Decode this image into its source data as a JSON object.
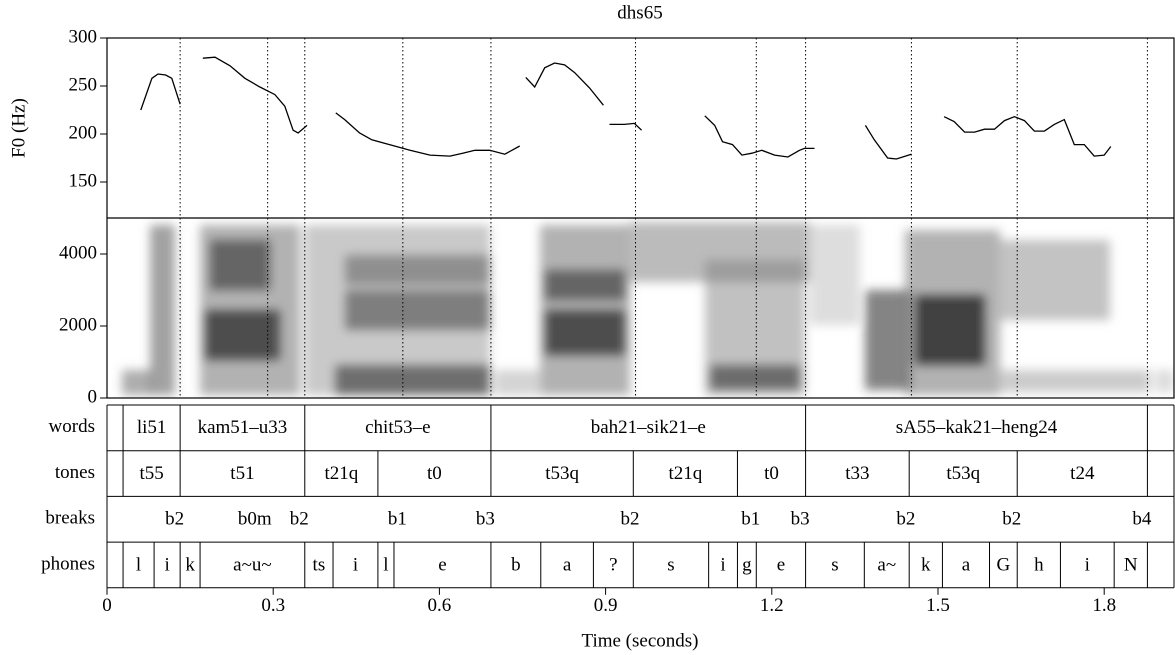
{
  "chart_data": [
    {
      "type": "line",
      "title": "dhs65",
      "ylabel": "F0 (Hz)",
      "color": "#000000",
      "ylim": [
        112.5,
        300
      ],
      "yticks": [
        150,
        200,
        250,
        300
      ],
      "x": [
        0.061,
        0.081,
        0.092,
        0.106,
        0.117,
        0.132,
        0.15,
        0.173,
        0.195,
        0.222,
        0.249,
        0.276,
        0.303,
        0.321,
        0.336,
        0.345,
        0.361,
        0.39,
        0.413,
        0.429,
        0.456,
        0.478,
        0.51,
        0.547,
        0.583,
        0.619,
        0.642,
        0.664,
        0.691,
        0.718,
        0.745,
        0.75,
        0.756,
        0.772,
        0.79,
        0.808,
        0.826,
        0.844,
        0.871,
        0.896,
        0.9,
        0.907,
        0.934,
        0.952,
        0.965,
        1.0,
        1.079,
        1.097,
        1.111,
        1.129,
        1.146,
        1.164,
        1.182,
        1.205,
        1.229,
        1.25,
        1.259,
        1.277,
        1.3,
        1.369,
        1.385,
        1.409,
        1.425,
        1.452,
        1.48,
        1.511,
        1.529,
        1.548,
        1.566,
        1.584,
        1.602,
        1.62,
        1.638,
        1.656,
        1.674,
        1.692,
        1.71,
        1.728,
        1.746,
        1.764,
        1.782,
        1.8,
        1.812
      ],
      "values": [
        225,
        258,
        262.5,
        261.5,
        258,
        231,
        null,
        279,
        280,
        271,
        258,
        249,
        241,
        229,
        204,
        201,
        209,
        null,
        222,
        215,
        201,
        194,
        189,
        183,
        178,
        177,
        180,
        183,
        183,
        179,
        187.5,
        null,
        259,
        249,
        269,
        274,
        272,
        264,
        248,
        230,
        null,
        210,
        210,
        211,
        204,
        null,
        219,
        209,
        192,
        189,
        178,
        180,
        183,
        178,
        176,
        183,
        185,
        185,
        null,
        209,
        194,
        175,
        174,
        179,
        null,
        218,
        213,
        202,
        202,
        205,
        205,
        214,
        218,
        214,
        203,
        203,
        210,
        215,
        189,
        189,
        177,
        178,
        187
      ]
    },
    {
      "type": "spectrogram",
      "ylim": [
        0,
        5000
      ],
      "yticks": [
        0,
        2000,
        4000
      ]
    },
    {
      "type": "textgrid",
      "xlabel": "Time (seconds)",
      "xlim": [
        0,
        1.926
      ],
      "xticks": [
        0,
        0.3,
        0.6,
        0.9,
        1.2,
        1.5,
        1.8
      ],
      "tiers": [
        {
          "name": "words",
          "kind": "interval",
          "boundaries": [
            0.029,
            0.132,
            0.357,
            0.693,
            1.261,
            1.878
          ],
          "labels": [
            "li51",
            "kam51–u33",
            "chit53–e",
            "bah21–sik21–e",
            "sA55–kak21–heng24"
          ]
        },
        {
          "name": "tones",
          "kind": "interval",
          "boundaries": [
            0.029,
            0.132,
            0.357,
            0.489,
            0.693,
            0.95,
            1.138,
            1.261,
            1.448,
            1.643,
            1.878
          ],
          "labels": [
            "t55",
            "t51",
            "t21q",
            "t0",
            "t53q",
            "t21q",
            "t0",
            "t33",
            "t53q",
            "t24"
          ]
        },
        {
          "name": "breaks",
          "kind": "point",
          "points": [
            0.132,
            0.29,
            0.357,
            0.534,
            0.693,
            0.954,
            1.172,
            1.261,
            1.452,
            1.643,
            1.878
          ],
          "labels": [
            "b2",
            "b0m",
            "b2",
            "b1",
            "b3",
            "b2",
            "b1",
            "b3",
            "b2",
            "b2",
            "b4"
          ]
        },
        {
          "name": "phones",
          "kind": "interval",
          "boundaries": [
            0.029,
            0.085,
            0.132,
            0.168,
            0.357,
            0.408,
            0.489,
            0.518,
            0.693,
            0.783,
            0.878,
            0.95,
            1.086,
            1.138,
            1.172,
            1.261,
            1.367,
            1.448,
            1.508,
            1.593,
            1.643,
            1.721,
            1.818,
            1.878
          ],
          "labels": [
            "l",
            "i",
            "k",
            "a~u~",
            "ts",
            "i",
            "l",
            "e",
            "b",
            "a",
            "?",
            "s",
            "i",
            "g",
            "e",
            "s",
            "a~",
            "k",
            "a",
            "G",
            "h",
            "i",
            "N"
          ]
        }
      ]
    }
  ]
}
